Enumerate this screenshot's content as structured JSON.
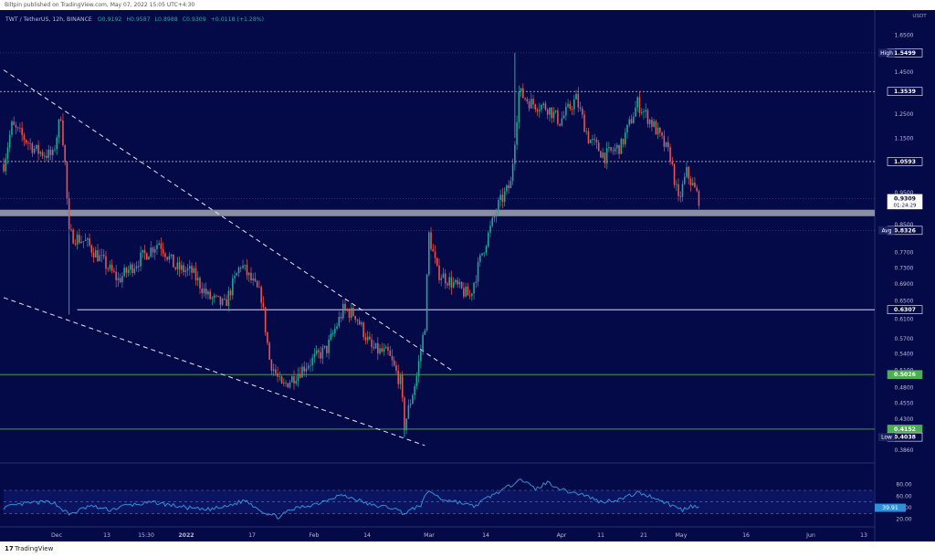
{
  "publish_line": "Biltpin published on TradingView.com, May 07, 2022 15:05 UTC+4:30",
  "legend": {
    "pair": "TWT / TetherUS, 12h, BINANCE",
    "open": "O0.9192",
    "high": "H0.9587",
    "low": "L0.8988",
    "close": "C0.9309",
    "change": "+0.0118 (+1.28%)"
  },
  "footer": {
    "logo_glyph": "17",
    "brand": "TradingView"
  },
  "axis": {
    "currency": "USDT"
  },
  "colors": {
    "background": "#040947",
    "up": "#26a69a",
    "down": "#ef5350",
    "white_line": "#ffffff",
    "green_line": "#4caf50",
    "rsi_line": "#2f8fd8",
    "zone": "#8b8fa3"
  },
  "chart_data": {
    "type": "candlestick",
    "timeframe": "12h",
    "scale": "log",
    "y_ticks": [
      "1.6500",
      "1.4500",
      "1.2500",
      "1.1500",
      "0.9500",
      "0.8500",
      "0.7700",
      "0.7300",
      "0.6900",
      "0.6500",
      "0.6100",
      "0.5700",
      "0.5400",
      "0.5100",
      "0.4800",
      "0.4550",
      "0.4300",
      "0.3860"
    ],
    "x_ticks": [
      "Dec",
      "13",
      "15:30",
      "2022",
      "17",
      "Feb",
      "14",
      "Mar",
      "14",
      "Apr",
      "11",
      "21",
      "May",
      "16",
      "Jun",
      "13"
    ],
    "price_tags": [
      {
        "label": "High",
        "value": "1.5499"
      },
      {
        "label": "",
        "value": "1.3539"
      },
      {
        "label": "",
        "value": "1.0593"
      },
      {
        "label": "",
        "value": "0.9309",
        "sub": "01:24:29"
      },
      {
        "label": "Avg",
        "value": "0.8326"
      },
      {
        "label": "",
        "value": "0.6307"
      },
      {
        "label": "",
        "value": "0.5026"
      },
      {
        "label": "",
        "value": "0.4152"
      },
      {
        "label": "Low",
        "value": "0.4038"
      }
    ],
    "horizontal_levels": [
      1.3539,
      1.0593,
      0.6307,
      0.5026,
      0.4152
    ],
    "support_zone": [
      0.875,
      0.895
    ],
    "trendlines": [
      {
        "style": "dashed",
        "from": {
          "date": "2021-11-18",
          "price": 1.46
        },
        "to": {
          "date": "2022-03-08",
          "price": 0.508
        }
      },
      {
        "style": "dashed",
        "from": {
          "date": "2021-11-18",
          "price": 0.658
        },
        "to": {
          "date": "2022-03-01",
          "price": 0.392
        }
      }
    ],
    "price_path": [
      {
        "date": "2021-11-18",
        "price": 1.05
      },
      {
        "date": "2021-11-20",
        "price": 1.2
      },
      {
        "date": "2021-11-23",
        "price": 1.15
      },
      {
        "date": "2021-11-26",
        "price": 1.1
      },
      {
        "date": "2021-11-30",
        "price": 1.08
      },
      {
        "date": "2021-12-02",
        "price": 1.25
      },
      {
        "date": "2021-12-03",
        "price": 1.05
      },
      {
        "date": "2021-12-04",
        "price": 0.82
      },
      {
        "date": "2021-12-08",
        "price": 0.8
      },
      {
        "date": "2021-12-12",
        "price": 0.75
      },
      {
        "date": "2021-12-16",
        "price": 0.7
      },
      {
        "date": "2021-12-21",
        "price": 0.75
      },
      {
        "date": "2021-12-26",
        "price": 0.8
      },
      {
        "date": "2021-12-30",
        "price": 0.73
      },
      {
        "date": "2022-01-03",
        "price": 0.72
      },
      {
        "date": "2022-01-07",
        "price": 0.66
      },
      {
        "date": "2022-01-11",
        "price": 0.64
      },
      {
        "date": "2022-01-15",
        "price": 0.74
      },
      {
        "date": "2022-01-20",
        "price": 0.66
      },
      {
        "date": "2022-01-22",
        "price": 0.53
      },
      {
        "date": "2022-01-25",
        "price": 0.48
      },
      {
        "date": "2022-01-31",
        "price": 0.52
      },
      {
        "date": "2022-02-05",
        "price": 0.55
      },
      {
        "date": "2022-02-09",
        "price": 0.63
      },
      {
        "date": "2022-02-12",
        "price": 0.62
      },
      {
        "date": "2022-02-16",
        "price": 0.55
      },
      {
        "date": "2022-02-20",
        "price": 0.54
      },
      {
        "date": "2022-02-23",
        "price": 0.49
      },
      {
        "date": "2022-02-24",
        "price": 0.42
      },
      {
        "date": "2022-02-27",
        "price": 0.5
      },
      {
        "date": "2022-03-01",
        "price": 0.6
      },
      {
        "date": "2022-03-02",
        "price": 0.82
      },
      {
        "date": "2022-03-04",
        "price": 0.72
      },
      {
        "date": "2022-03-08",
        "price": 0.69
      },
      {
        "date": "2022-03-12",
        "price": 0.66
      },
      {
        "date": "2022-03-15",
        "price": 0.77
      },
      {
        "date": "2022-03-19",
        "price": 0.91
      },
      {
        "date": "2022-03-22",
        "price": 0.98
      },
      {
        "date": "2022-03-24",
        "price": 1.35
      },
      {
        "date": "2022-03-27",
        "price": 1.3
      },
      {
        "date": "2022-03-31",
        "price": 1.28
      },
      {
        "date": "2022-04-03",
        "price": 1.22
      },
      {
        "date": "2022-04-07",
        "price": 1.32
      },
      {
        "date": "2022-04-10",
        "price": 1.15
      },
      {
        "date": "2022-04-14",
        "price": 1.08
      },
      {
        "date": "2022-04-18",
        "price": 1.12
      },
      {
        "date": "2022-04-22",
        "price": 1.3
      },
      {
        "date": "2022-04-26",
        "price": 1.2
      },
      {
        "date": "2022-04-30",
        "price": 1.08
      },
      {
        "date": "2022-05-02",
        "price": 0.92
      },
      {
        "date": "2022-05-04",
        "price": 1.02
      },
      {
        "date": "2022-05-07",
        "price": 0.93
      }
    ],
    "extremes": [
      {
        "date": "2022-03-23",
        "price": 1.5499
      },
      {
        "date": "2022-02-24",
        "price": 0.4038
      },
      {
        "date": "2021-12-04",
        "price": 0.62
      }
    ],
    "x_range": [
      "2021-11-18",
      "2022-06-19"
    ],
    "y_range": [
      0.37,
      1.7
    ],
    "rsi": {
      "y_ticks": [
        "80.00",
        "60.00",
        "40.00",
        "20.00"
      ],
      "current": "39.91",
      "band": [
        30,
        70
      ],
      "path": [
        {
          "date": "2021-11-18",
          "value": 40
        },
        {
          "date": "2021-11-24",
          "value": 48
        },
        {
          "date": "2021-11-30",
          "value": 50
        },
        {
          "date": "2021-12-04",
          "value": 28
        },
        {
          "date": "2021-12-09",
          "value": 43
        },
        {
          "date": "2021-12-14",
          "value": 36
        },
        {
          "date": "2021-12-18",
          "value": 44
        },
        {
          "date": "2021-12-25",
          "value": 49
        },
        {
          "date": "2021-12-31",
          "value": 42
        },
        {
          "date": "2022-01-06",
          "value": 36
        },
        {
          "date": "2022-01-11",
          "value": 41
        },
        {
          "date": "2022-01-16",
          "value": 53
        },
        {
          "date": "2022-01-21",
          "value": 31
        },
        {
          "date": "2022-01-24",
          "value": 24
        },
        {
          "date": "2022-01-28",
          "value": 38
        },
        {
          "date": "2022-02-03",
          "value": 48
        },
        {
          "date": "2022-02-08",
          "value": 62
        },
        {
          "date": "2022-02-12",
          "value": 55
        },
        {
          "date": "2022-02-16",
          "value": 44
        },
        {
          "date": "2022-02-21",
          "value": 40
        },
        {
          "date": "2022-02-24",
          "value": 30
        },
        {
          "date": "2022-02-28",
          "value": 45
        },
        {
          "date": "2022-03-02",
          "value": 70
        },
        {
          "date": "2022-03-05",
          "value": 55
        },
        {
          "date": "2022-03-09",
          "value": 50
        },
        {
          "date": "2022-03-13",
          "value": 42
        },
        {
          "date": "2022-03-17",
          "value": 60
        },
        {
          "date": "2022-03-22",
          "value": 78
        },
        {
          "date": "2022-03-24",
          "value": 92
        },
        {
          "date": "2022-03-28",
          "value": 72
        },
        {
          "date": "2022-03-31",
          "value": 84
        },
        {
          "date": "2022-04-04",
          "value": 70
        },
        {
          "date": "2022-04-09",
          "value": 62
        },
        {
          "date": "2022-04-13",
          "value": 50
        },
        {
          "date": "2022-04-18",
          "value": 55
        },
        {
          "date": "2022-04-22",
          "value": 66
        },
        {
          "date": "2022-04-26",
          "value": 58
        },
        {
          "date": "2022-04-30",
          "value": 45
        },
        {
          "date": "2022-05-03",
          "value": 36
        },
        {
          "date": "2022-05-05",
          "value": 44
        },
        {
          "date": "2022-05-07",
          "value": 40
        }
      ]
    }
  }
}
